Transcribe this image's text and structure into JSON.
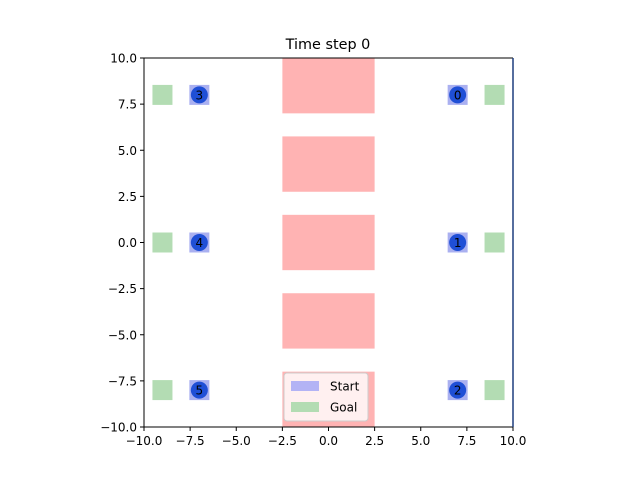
{
  "chart_data": {
    "type": "scatter",
    "title": "Time step 0",
    "xlim": [
      -10,
      10
    ],
    "ylim": [
      -10,
      10
    ],
    "x_ticks": [
      -10,
      -7.5,
      -5,
      -2.5,
      0,
      2.5,
      5,
      7.5,
      10
    ],
    "x_tick_labels": [
      "−10.0",
      "−7.5",
      "−5.0",
      "−2.5",
      "0.0",
      "2.5",
      "5.0",
      "7.5",
      "10.0"
    ],
    "y_ticks": [
      -10,
      -7.5,
      -5,
      -2.5,
      0,
      2.5,
      5,
      7.5,
      10
    ],
    "y_tick_labels": [
      "−10.0",
      "−7.5",
      "−5.0",
      "−2.5",
      "0.0",
      "2.5",
      "5.0",
      "7.5",
      "10.0"
    ],
    "grid": false,
    "legend_position": "bottom-center",
    "obstacles": [
      {
        "x0": -2.5,
        "x1": 2.5,
        "y0": 7.0,
        "y1": 10.0
      },
      {
        "x0": -2.5,
        "x1": 2.5,
        "y0": 2.75,
        "y1": 5.75
      },
      {
        "x0": -2.5,
        "x1": 2.5,
        "y0": -1.5,
        "y1": 1.5
      },
      {
        "x0": -2.5,
        "x1": 2.5,
        "y0": -5.75,
        "y1": -2.75
      },
      {
        "x0": -2.5,
        "x1": 2.5,
        "y0": -10.0,
        "y1": -7.0
      }
    ],
    "agents": [
      {
        "label": "0",
        "start": [
          7,
          8
        ],
        "goal": [
          9,
          8
        ]
      },
      {
        "label": "1",
        "start": [
          7,
          0
        ],
        "goal": [
          9,
          0
        ]
      },
      {
        "label": "2",
        "start": [
          7,
          -8
        ],
        "goal": [
          9,
          -8
        ]
      },
      {
        "label": "3",
        "start": [
          -7,
          8
        ],
        "goal": [
          -9,
          8
        ]
      },
      {
        "label": "4",
        "start": [
          -7,
          0
        ],
        "goal": [
          -9,
          0
        ]
      },
      {
        "label": "5",
        "start": [
          -7,
          -8
        ],
        "goal": [
          -9,
          -8
        ]
      }
    ],
    "legend": [
      {
        "label": "Start",
        "color": "#b3b3f5"
      },
      {
        "label": "Goal",
        "color": "#b3dcb3"
      }
    ]
  },
  "colors": {
    "obstacle": "#ffb3b3",
    "start": "#aab0f0",
    "goal": "#b3dcb3",
    "agent": "#1f4fd6",
    "axes": "#000000",
    "right_spine": "#1f3f7f"
  }
}
